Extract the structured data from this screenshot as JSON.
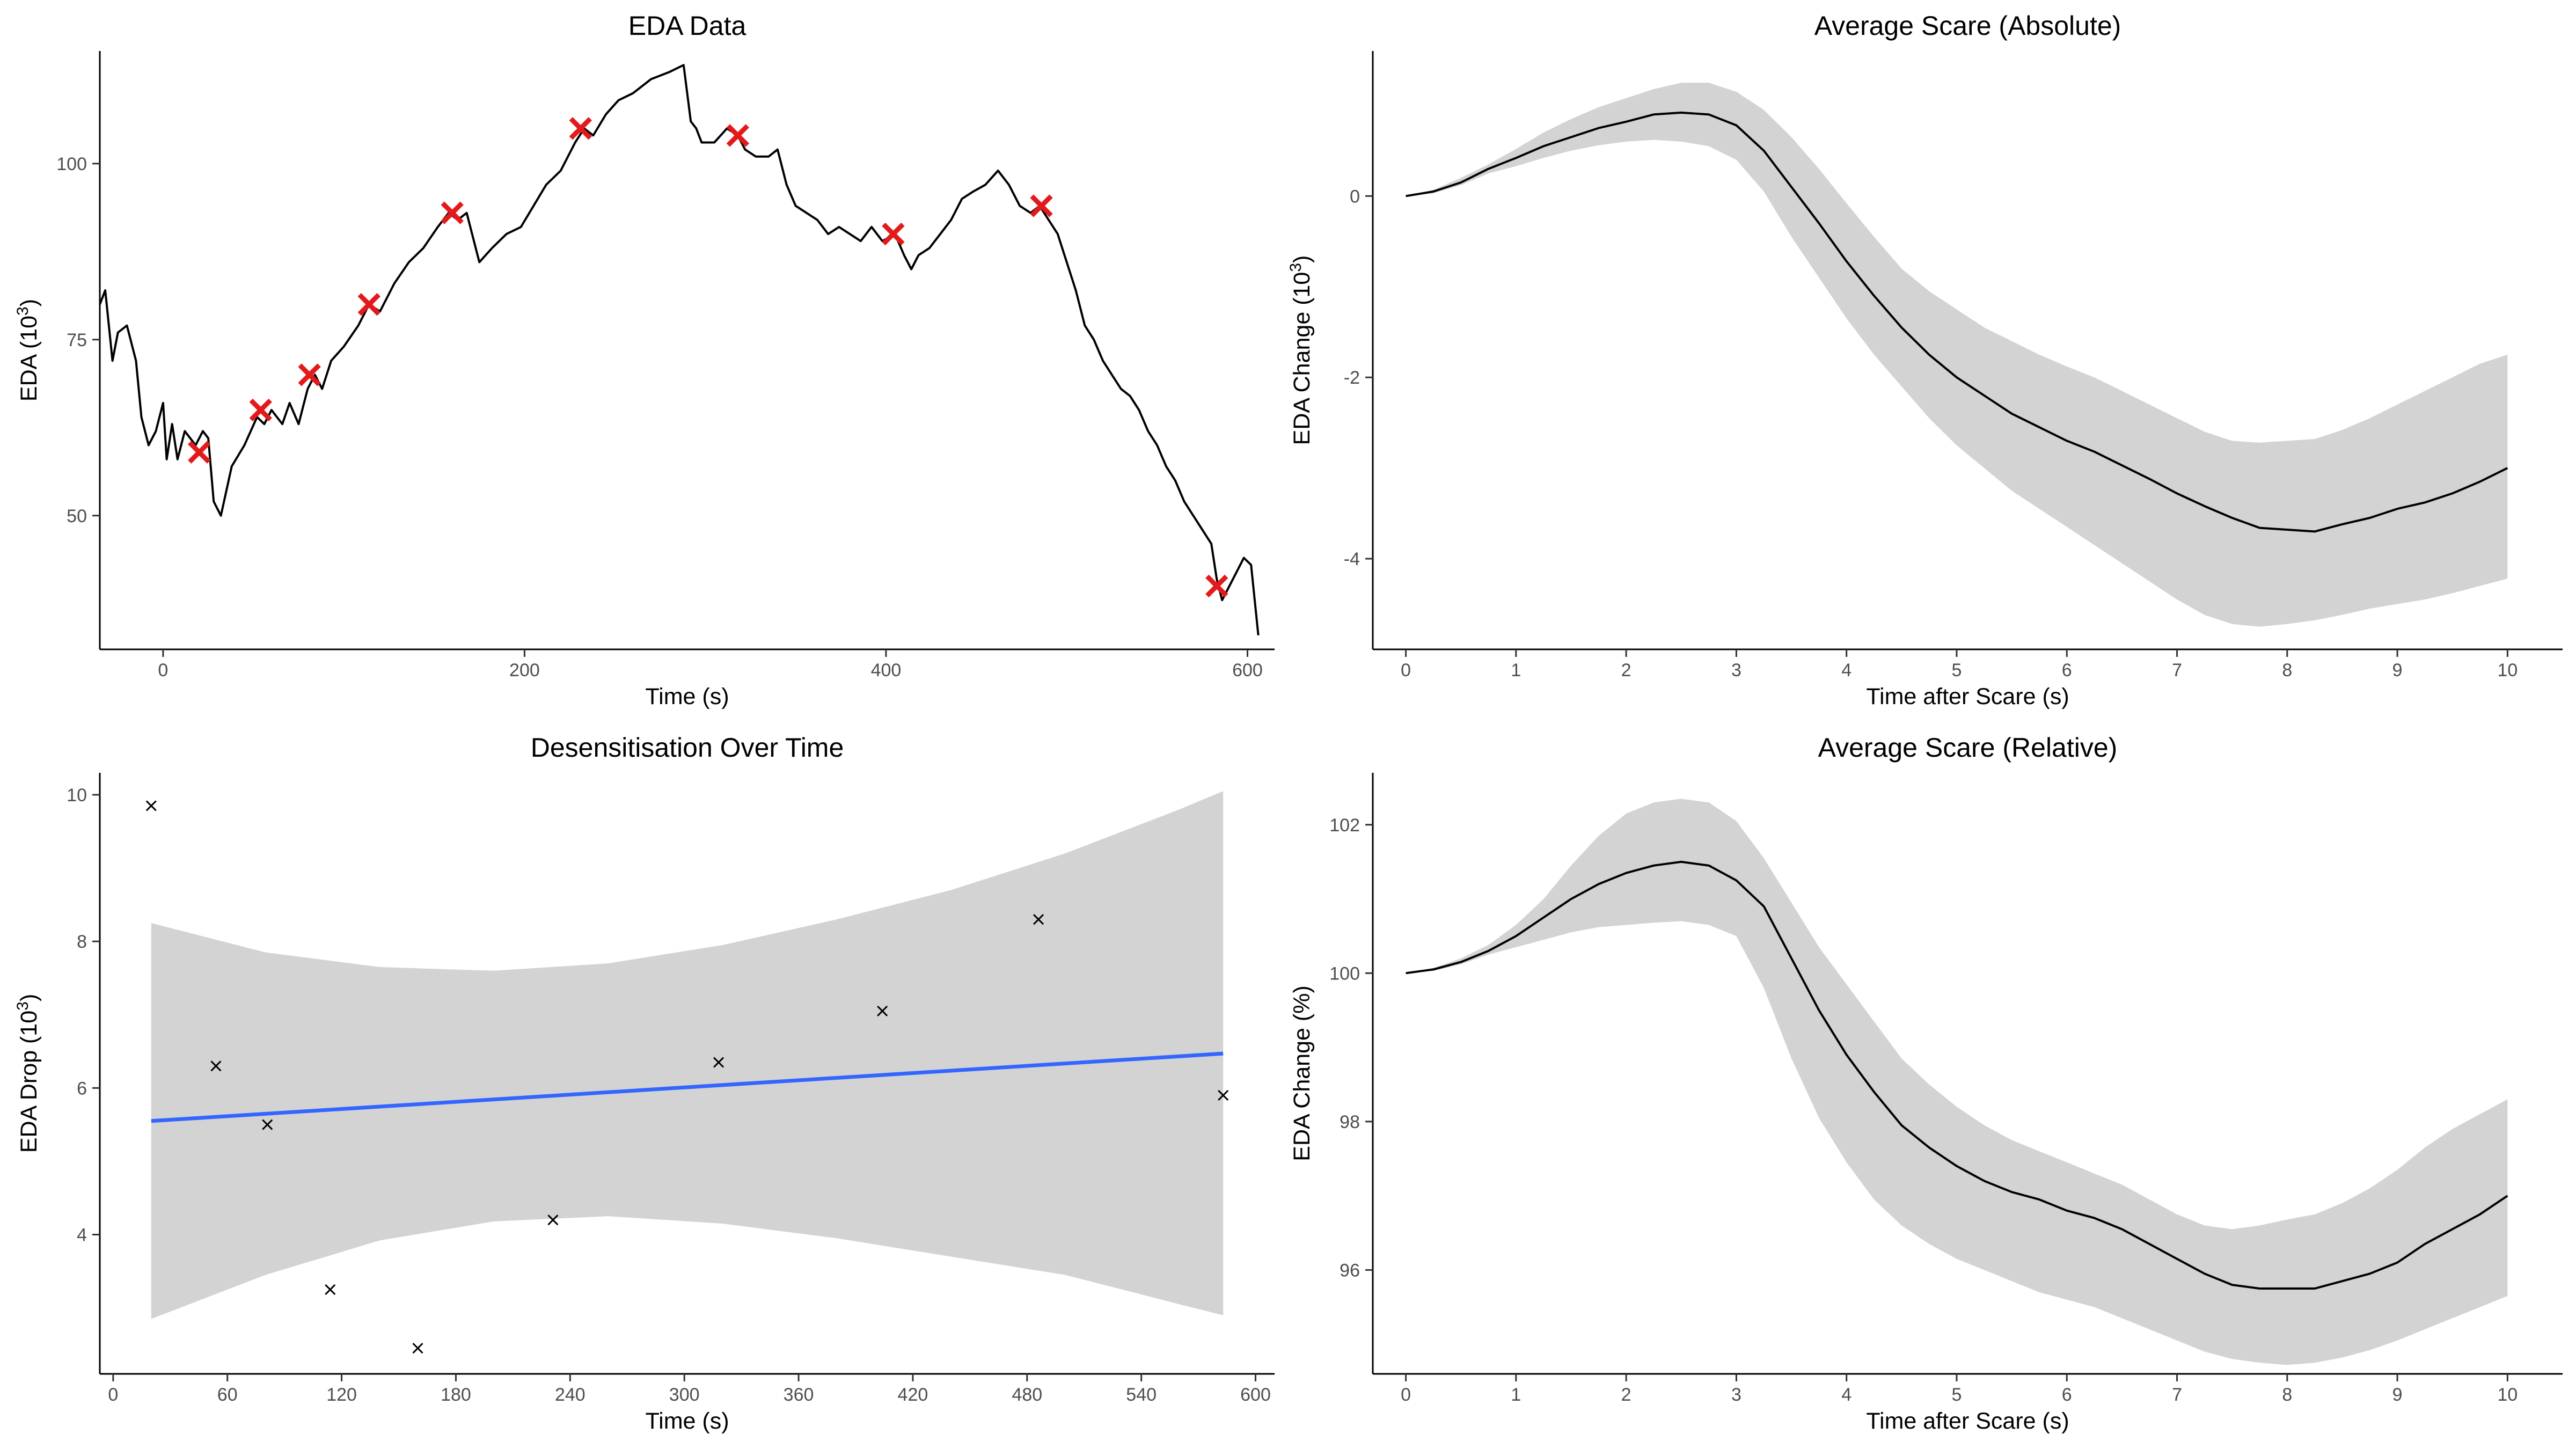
{
  "chart_data": [
    {
      "type": "line",
      "title": "EDA Data",
      "xlabel": "Time (s)",
      "ylabel": "EDA  (10",
      "ylabel_sup": "3",
      "ylabel_suffix": ")",
      "xlim": [
        -35,
        615
      ],
      "ylim": [
        31,
        116
      ],
      "xticks": [
        0,
        200,
        400,
        600
      ],
      "yticks": [
        50,
        75,
        100
      ],
      "series": [
        {
          "x": [
            -35,
            -32,
            -28,
            -25,
            -20,
            -15,
            -12,
            -8,
            -4,
            0,
            2,
            5,
            8,
            12,
            15,
            18,
            22,
            25,
            28,
            32,
            38,
            45,
            52,
            56,
            60,
            66,
            70,
            75,
            80,
            84,
            88,
            93,
            100,
            108,
            114,
            120,
            128,
            136,
            144,
            152,
            158,
            163,
            168,
            175,
            182,
            190,
            198,
            205,
            212,
            220,
            228,
            233,
            238,
            245,
            252,
            260,
            270,
            280,
            288,
            292,
            295,
            298,
            305,
            312,
            318,
            322,
            328,
            335,
            340,
            345,
            350,
            356,
            362,
            368,
            374,
            380,
            386,
            392,
            398,
            405,
            410,
            414,
            418,
            424,
            430,
            436,
            442,
            448,
            455,
            462,
            468,
            474,
            480,
            485,
            490,
            495,
            500,
            505,
            510,
            515,
            520,
            525,
            530,
            535,
            540,
            545,
            550,
            555,
            560,
            565,
            570,
            575,
            580,
            583,
            586,
            590,
            594,
            598,
            602,
            606
          ],
          "y": [
            80,
            82,
            72,
            76,
            77,
            72,
            64,
            60,
            62,
            66,
            58,
            63,
            58,
            62,
            61,
            60,
            62,
            61,
            52,
            50,
            57,
            60,
            64,
            63,
            65,
            63,
            66,
            63,
            68,
            70,
            68,
            72,
            74,
            77,
            80,
            79,
            83,
            86,
            88,
            91,
            93,
            92,
            93,
            86,
            88,
            90,
            91,
            94,
            97,
            99,
            103,
            105,
            104,
            107,
            109,
            110,
            112,
            113,
            114,
            106,
            105,
            103,
            103,
            105,
            104,
            102,
            101,
            101,
            102,
            97,
            94,
            93,
            92,
            90,
            91,
            90,
            89,
            91,
            89,
            90,
            87,
            85,
            87,
            88,
            90,
            92,
            95,
            96,
            97,
            99,
            97,
            94,
            93,
            94,
            92,
            90,
            86,
            82,
            77,
            75,
            72,
            70,
            68,
            67,
            65,
            62,
            60,
            57,
            55,
            52,
            50,
            48,
            46,
            41,
            38,
            40,
            42,
            44,
            43,
            33
          ]
        }
      ],
      "markers": {
        "x": [
          20,
          54,
          81,
          114,
          160,
          231,
          318,
          404,
          486,
          583
        ],
        "y": [
          59,
          65,
          70,
          80,
          93,
          105,
          104,
          90,
          94,
          40
        ],
        "color": "#e31a1c"
      },
      "line_color": "#000000",
      "grid": false
    },
    {
      "type": "line",
      "title": "Average Scare (Absolute)",
      "xlabel": "Time after Scare (s)",
      "ylabel": "EDA Change  (10",
      "ylabel_sup": "3",
      "ylabel_suffix": ")",
      "xlim": [
        -0.3,
        10.5
      ],
      "ylim": [
        -5.0,
        1.6
      ],
      "xticks": [
        0,
        1,
        2,
        3,
        4,
        5,
        6,
        7,
        8,
        9,
        10
      ],
      "yticks": [
        -4,
        -2,
        0
      ],
      "series": [
        {
          "x": [
            0,
            0.25,
            0.5,
            0.75,
            1.0,
            1.25,
            1.5,
            1.75,
            2.0,
            2.25,
            2.5,
            2.75,
            3.0,
            3.25,
            3.5,
            3.75,
            4.0,
            4.25,
            4.5,
            4.75,
            5.0,
            5.25,
            5.5,
            5.75,
            6.0,
            6.25,
            6.5,
            6.75,
            7.0,
            7.25,
            7.5,
            7.75,
            8.0,
            8.25,
            8.5,
            8.75,
            9.0,
            9.25,
            9.5,
            9.75,
            10.0
          ],
          "y": [
            0.0,
            0.05,
            0.15,
            0.3,
            0.42,
            0.55,
            0.65,
            0.75,
            0.82,
            0.9,
            0.92,
            0.9,
            0.78,
            0.5,
            0.1,
            -0.3,
            -0.72,
            -1.1,
            -1.45,
            -1.75,
            -2.0,
            -2.2,
            -2.4,
            -2.55,
            -2.7,
            -2.82,
            -2.97,
            -3.12,
            -3.28,
            -3.42,
            -3.55,
            -3.66,
            -3.68,
            -3.7,
            -3.62,
            -3.55,
            -3.45,
            -3.38,
            -3.28,
            -3.15,
            -3.0
          ],
          "lower": [
            0.0,
            0.03,
            0.12,
            0.25,
            0.33,
            0.42,
            0.5,
            0.56,
            0.6,
            0.62,
            0.6,
            0.55,
            0.4,
            0.05,
            -0.45,
            -0.9,
            -1.35,
            -1.75,
            -2.1,
            -2.45,
            -2.75,
            -3.0,
            -3.25,
            -3.45,
            -3.65,
            -3.85,
            -4.05,
            -4.25,
            -4.45,
            -4.62,
            -4.72,
            -4.75,
            -4.72,
            -4.68,
            -4.62,
            -4.55,
            -4.5,
            -4.45,
            -4.38,
            -4.3,
            -4.22
          ],
          "upper": [
            0.0,
            0.07,
            0.2,
            0.35,
            0.52,
            0.7,
            0.85,
            0.98,
            1.08,
            1.18,
            1.25,
            1.25,
            1.15,
            0.95,
            0.65,
            0.3,
            -0.08,
            -0.45,
            -0.8,
            -1.05,
            -1.25,
            -1.45,
            -1.6,
            -1.75,
            -1.88,
            -2.0,
            -2.15,
            -2.3,
            -2.45,
            -2.6,
            -2.7,
            -2.72,
            -2.7,
            -2.68,
            -2.58,
            -2.45,
            -2.3,
            -2.15,
            -2.0,
            -1.85,
            -1.75
          ]
        }
      ],
      "line_color": "#000000",
      "band_color": "#d3d3d3",
      "grid": false
    },
    {
      "type": "scatter",
      "title": "Desensitisation Over Time",
      "xlabel": "Time (s)",
      "ylabel": "EDA Drop  (10",
      "ylabel_sup": "3",
      "ylabel_suffix": ")",
      "xlim": [
        -7,
        610
      ],
      "ylim": [
        2.1,
        10.3
      ],
      "xticks": [
        0,
        60,
        120,
        180,
        240,
        300,
        360,
        420,
        480,
        540,
        600
      ],
      "yticks": [
        4,
        6,
        8,
        10
      ],
      "series": [
        {
          "x": [
            20,
            54,
            81,
            114,
            160,
            231,
            318,
            404,
            486,
            583
          ],
          "y": [
            9.85,
            6.3,
            5.5,
            3.25,
            2.45,
            4.2,
            6.35,
            7.05,
            8.3,
            5.9
          ]
        }
      ],
      "fit": {
        "x": [
          20,
          583
        ],
        "y": [
          5.55,
          6.47
        ],
        "color": "#3366ff",
        "band_x": [
          20,
          80,
          140,
          200,
          260,
          320,
          380,
          440,
          500,
          560,
          583
        ],
        "band_lower": [
          2.85,
          3.45,
          3.92,
          4.18,
          4.25,
          4.15,
          3.95,
          3.7,
          3.45,
          3.05,
          2.9
        ],
        "band_upper": [
          8.25,
          7.85,
          7.65,
          7.6,
          7.7,
          7.95,
          8.3,
          8.7,
          9.2,
          9.8,
          10.05
        ]
      },
      "marker_color": "#000000",
      "band_color": "#d3d3d3",
      "grid": false
    },
    {
      "type": "line",
      "title": "Average Scare (Relative)",
      "xlabel": "Time after Scare (s)",
      "ylabel": "EDA Change (%)",
      "xlim": [
        -0.3,
        10.5
      ],
      "ylim": [
        94.6,
        102.7
      ],
      "xticks": [
        0,
        1,
        2,
        3,
        4,
        5,
        6,
        7,
        8,
        9,
        10
      ],
      "yticks": [
        96,
        98,
        100,
        102
      ],
      "series": [
        {
          "x": [
            0,
            0.25,
            0.5,
            0.75,
            1.0,
            1.25,
            1.5,
            1.75,
            2.0,
            2.25,
            2.5,
            2.75,
            3.0,
            3.25,
            3.5,
            3.75,
            4.0,
            4.25,
            4.5,
            4.75,
            5.0,
            5.25,
            5.5,
            5.75,
            6.0,
            6.25,
            6.5,
            6.75,
            7.0,
            7.25,
            7.5,
            7.75,
            8.0,
            8.25,
            8.5,
            8.75,
            9.0,
            9.25,
            9.5,
            9.75,
            10.0
          ],
          "y": [
            100.0,
            100.05,
            100.15,
            100.3,
            100.5,
            100.75,
            101.0,
            101.2,
            101.35,
            101.45,
            101.5,
            101.45,
            101.25,
            100.9,
            100.2,
            99.5,
            98.9,
            98.4,
            97.95,
            97.65,
            97.4,
            97.2,
            97.05,
            96.95,
            96.8,
            96.7,
            96.55,
            96.35,
            96.15,
            95.95,
            95.8,
            95.75,
            95.75,
            95.75,
            95.85,
            95.95,
            96.1,
            96.35,
            96.55,
            96.75,
            97.0
          ],
          "lower": [
            100.0,
            100.03,
            100.12,
            100.25,
            100.35,
            100.45,
            100.55,
            100.62,
            100.65,
            100.68,
            100.7,
            100.65,
            100.5,
            99.8,
            98.85,
            98.05,
            97.45,
            96.95,
            96.6,
            96.35,
            96.15,
            96.0,
            95.85,
            95.7,
            95.6,
            95.5,
            95.35,
            95.2,
            95.05,
            94.9,
            94.8,
            94.75,
            94.72,
            94.75,
            94.82,
            94.92,
            95.05,
            95.2,
            95.35,
            95.5,
            95.65
          ],
          "upper": [
            100.0,
            100.07,
            100.2,
            100.38,
            100.65,
            101.0,
            101.45,
            101.85,
            102.15,
            102.3,
            102.35,
            102.3,
            102.05,
            101.55,
            100.95,
            100.35,
            99.85,
            99.35,
            98.85,
            98.5,
            98.2,
            97.95,
            97.75,
            97.6,
            97.45,
            97.3,
            97.15,
            96.95,
            96.75,
            96.6,
            96.55,
            96.6,
            96.68,
            96.75,
            96.9,
            97.1,
            97.35,
            97.65,
            97.9,
            98.1,
            98.3
          ]
        }
      ],
      "line_color": "#000000",
      "band_color": "#d3d3d3",
      "grid": false
    }
  ]
}
